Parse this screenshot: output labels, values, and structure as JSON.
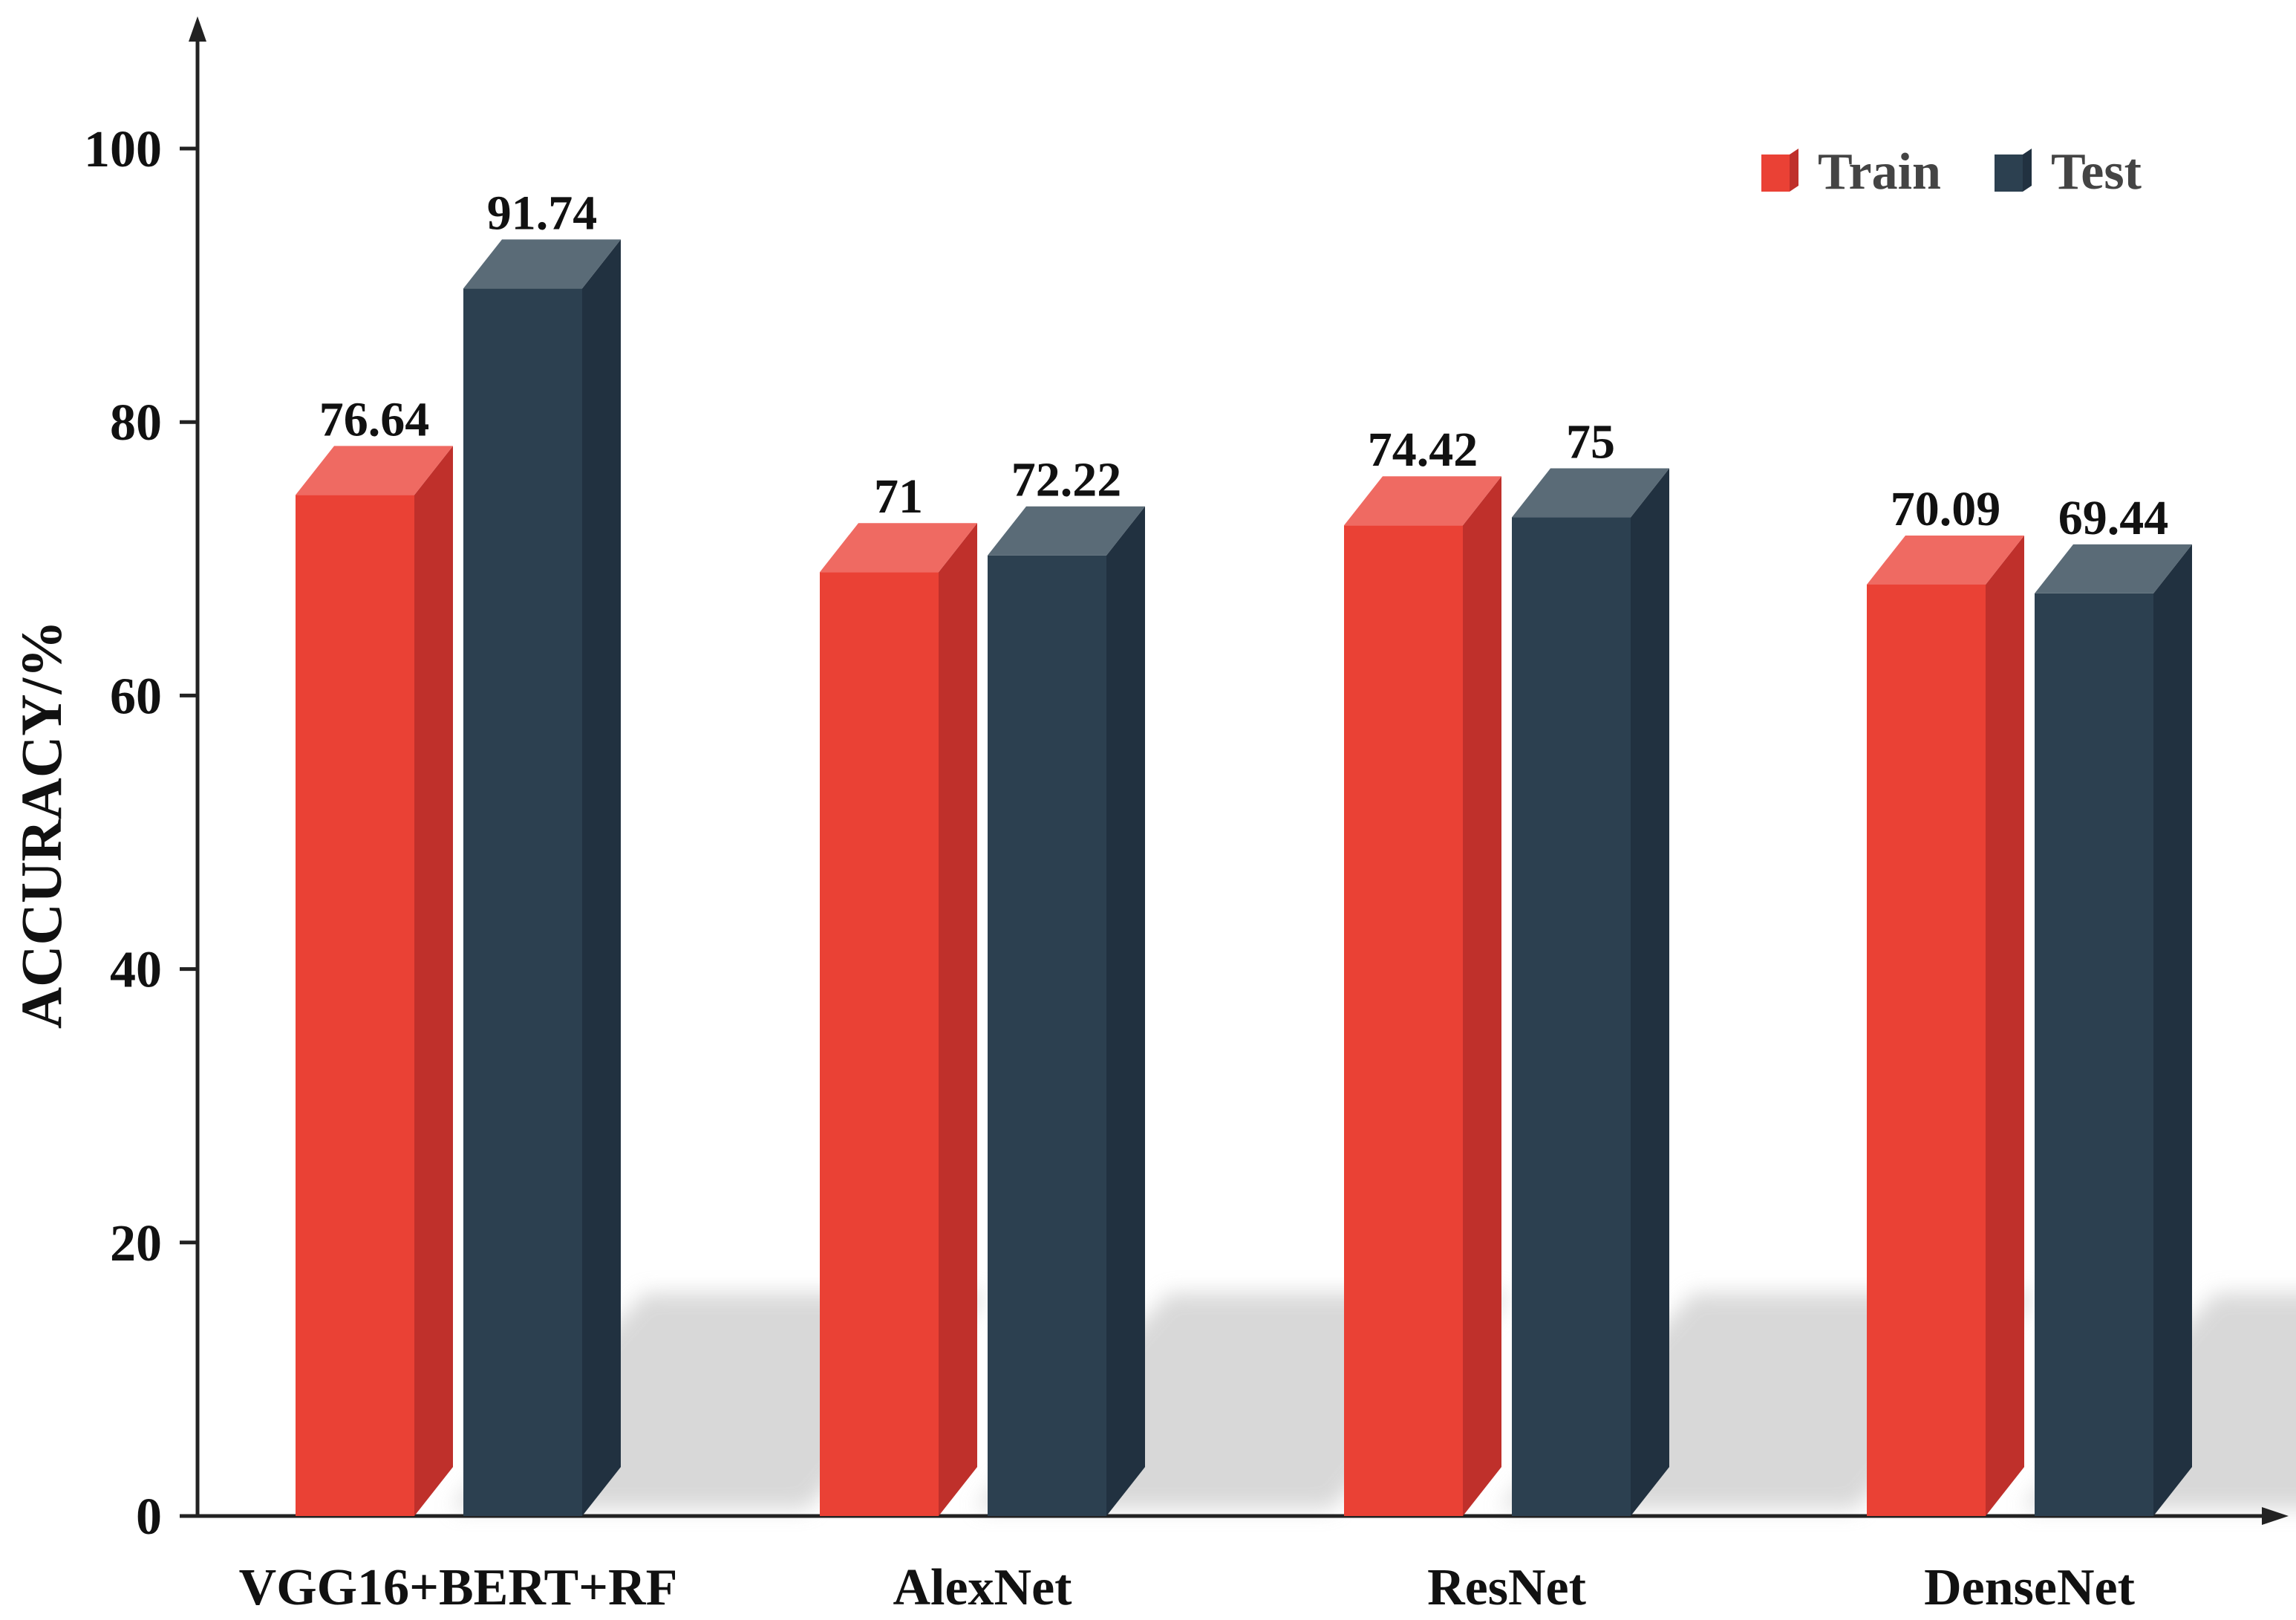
{
  "chart_data": {
    "type": "bar",
    "title": "",
    "xlabel": "",
    "ylabel": "ACCURACY/%",
    "ylim": [
      0,
      100
    ],
    "yticks": [
      0,
      20,
      40,
      60,
      80,
      100
    ],
    "categories": [
      "VGG16+BERT+RF",
      "AlexNet",
      "ResNet",
      "DenseNet"
    ],
    "series": [
      {
        "name": "Train",
        "values": [
          76.64,
          71,
          74.42,
          70.09
        ],
        "labels": [
          "76.64",
          "71",
          "74.42",
          "70.09"
        ]
      },
      {
        "name": "Test",
        "values": [
          91.74,
          72.22,
          75,
          69.44
        ],
        "labels": [
          "91.74",
          "72.22",
          "75",
          "69.44"
        ]
      }
    ],
    "legend": {
      "position": "top-right",
      "items": [
        "Train",
        "Test"
      ]
    },
    "grid": false,
    "style": "3d-bar",
    "colors": {
      "Train": {
        "front": "#ea4135",
        "side": "#bf302b",
        "top": "#ef6a62"
      },
      "Test": {
        "front": "#2c4050",
        "side": "#213140",
        "top": "#5a6b77"
      },
      "axis": "#222222",
      "shadow": "#cfcfcf"
    }
  }
}
